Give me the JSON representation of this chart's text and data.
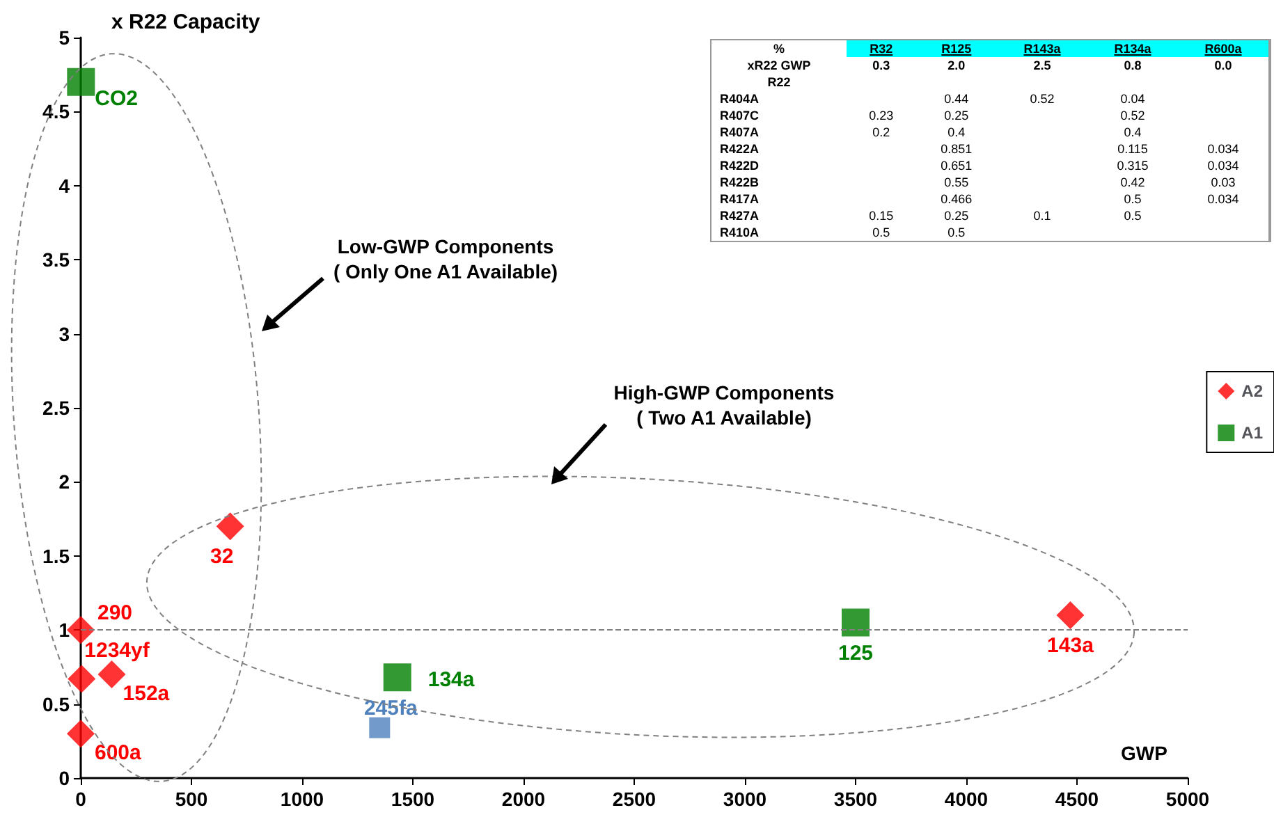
{
  "chart_data": [
    {
      "type": "scatter",
      "ylabel": "x R22 Capacity",
      "xlabel": "GWP",
      "xlim": [
        0,
        5000
      ],
      "xticks": [
        0,
        500,
        1000,
        1500,
        2000,
        2500,
        3000,
        3500,
        4000,
        4500,
        5000
      ],
      "ylim": [
        0,
        5
      ],
      "yticks": [
        0,
        0.5,
        1,
        1.5,
        2,
        2.5,
        3,
        3.5,
        4,
        4.5,
        5
      ],
      "grid": false,
      "legend": "right",
      "series": [
        {
          "name": "A2",
          "color": "#ff0000",
          "marker": "diamond",
          "x": [
            0,
            4,
            140,
            0,
            675,
            4470
          ],
          "values": [
            1,
            0.67,
            0.7,
            0.3,
            1.7,
            1.1
          ]
        },
        {
          "name": "A1",
          "color": "#008000",
          "marker": "square",
          "x": [
            1,
            1430,
            3500
          ],
          "values": [
            4.7,
            0.68,
            1.05
          ]
        },
        {
          "color": "#4f81bd",
          "marker": "square",
          "x": [
            1350
          ],
          "values": [
            0.34
          ]
        }
      ],
      "ref_lines": [
        {
          "axis": "y",
          "value": 1,
          "color": "#808080",
          "line_style": "dashed"
        }
      ],
      "annotations": [
        {
          "text": "CO2",
          "x": 1,
          "y": 4.7
        },
        {
          "text": "290",
          "x": 0,
          "y": 1
        },
        {
          "text": "1234yf",
          "x": 4,
          "y": 0.67
        },
        {
          "text": "152a",
          "x": 140,
          "y": 0.7
        },
        {
          "text": "600a",
          "x": 0,
          "y": 0.3
        },
        {
          "text": "32",
          "x": 675,
          "y": 1.7
        },
        {
          "text": "245fa",
          "x": 1350,
          "y": 0.34
        },
        {
          "text": "134a",
          "x": 1430,
          "y": 0.68
        },
        {
          "text": "125",
          "x": 3500,
          "y": 1.05
        },
        {
          "text": "143a",
          "x": 4470,
          "y": 1.1
        },
        "Low-GWP Components\n( Only One A1 Available)",
        "High-GWP Components\n( Two A1 Available)"
      ]
    },
    {
      "type": "other",
      "title": "%",
      "categories": [
        "R32",
        "R125",
        "R143a",
        "R134a",
        "R600a"
      ],
      "y_categories": [
        "xR22 GWP",
        "R22",
        "R404A",
        "R407C",
        "R407A",
        "R422A",
        "R422D",
        "R422B",
        "R417A",
        "R427A",
        "R410A"
      ],
      "cell_labels": [
        [
          "0.3",
          "2.0",
          "2.5",
          "0.8",
          "0.0"
        ],
        [
          null,
          null,
          null,
          null,
          null
        ],
        [
          null,
          "0.44",
          "0.52",
          "0.04",
          null
        ],
        [
          "0.23",
          "0.25",
          null,
          "0.52",
          null
        ],
        [
          "0.2",
          "0.4",
          null,
          "0.4",
          null
        ],
        [
          null,
          "0.851",
          null,
          "0.115",
          "0.034"
        ],
        [
          null,
          "0.651",
          null,
          "0.315",
          "0.034"
        ],
        [
          null,
          "0.55",
          null,
          "0.42",
          "0.03"
        ],
        [
          null,
          "0.466",
          null,
          "0.5",
          "0.034"
        ],
        [
          "0.15",
          "0.25",
          "0.1",
          "0.5",
          null
        ],
        [
          "0.5",
          "0.5",
          null,
          null,
          null
        ]
      ]
    }
  ]
}
